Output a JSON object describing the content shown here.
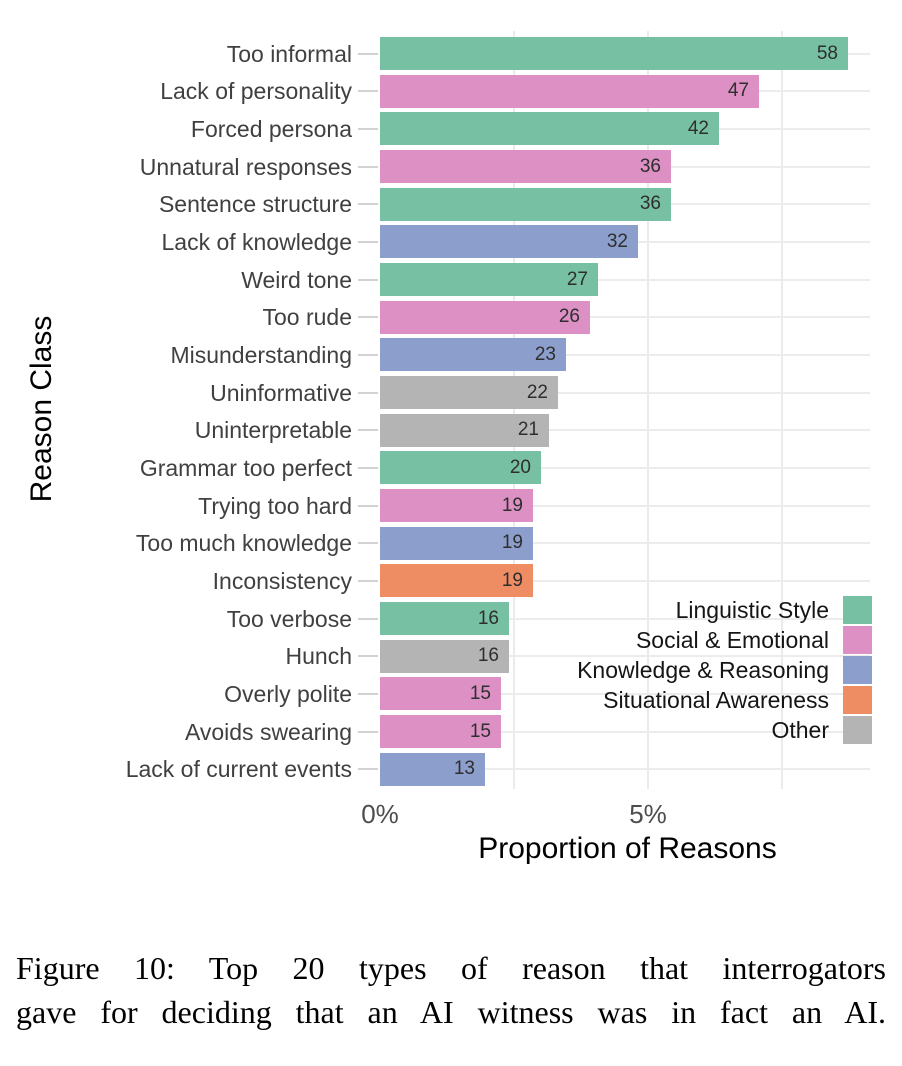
{
  "figure": {
    "caption_line1": "Figure 10: Top 20 types of reason that interrogators",
    "caption_line2": "gave for deciding that an AI witness was in fact an AI."
  },
  "chart_data": {
    "type": "bar",
    "orientation": "horizontal",
    "title": "",
    "xlabel": "Proportion of Reasons",
    "ylabel": "Reason Class",
    "x_tick_labels": [
      "0%",
      "5%"
    ],
    "x_ticks_percent": [
      0,
      5
    ],
    "x_gridlines_percent": [
      2.5,
      5,
      7.5
    ],
    "xlim_percent": [
      0,
      9.2
    ],
    "grid": true,
    "legend_position": "inside-bottom-right",
    "legend": [
      {
        "label": "Linguistic Style",
        "color": "#77c0a3"
      },
      {
        "label": "Social & Emotional",
        "color": "#dc90c3"
      },
      {
        "label": "Knowledge & Reasoning",
        "color": "#8c9ecb"
      },
      {
        "label": "Situational Awareness",
        "color": "#ee8c63"
      },
      {
        "label": "Other",
        "color": "#b4b4b4"
      }
    ],
    "bars": [
      {
        "label": "Too informal",
        "count": 58,
        "percent": 8.7,
        "category": "Linguistic Style"
      },
      {
        "label": "Lack of personality",
        "count": 47,
        "percent": 7.1,
        "category": "Social & Emotional"
      },
      {
        "label": "Forced persona",
        "count": 42,
        "percent": 6.3,
        "category": "Linguistic Style"
      },
      {
        "label": "Unnatural responses",
        "count": 36,
        "percent": 5.4,
        "category": "Social & Emotional"
      },
      {
        "label": "Sentence structure",
        "count": 36,
        "percent": 5.4,
        "category": "Linguistic Style"
      },
      {
        "label": "Lack of knowledge",
        "count": 32,
        "percent": 4.8,
        "category": "Knowledge & Reasoning"
      },
      {
        "label": "Weird tone",
        "count": 27,
        "percent": 4.1,
        "category": "Linguistic Style"
      },
      {
        "label": "Too rude",
        "count": 26,
        "percent": 3.9,
        "category": "Social & Emotional"
      },
      {
        "label": "Misunderstanding",
        "count": 23,
        "percent": 3.5,
        "category": "Knowledge & Reasoning"
      },
      {
        "label": "Uninformative",
        "count": 22,
        "percent": 3.3,
        "category": "Other"
      },
      {
        "label": "Uninterpretable",
        "count": 21,
        "percent": 3.2,
        "category": "Other"
      },
      {
        "label": "Grammar too perfect",
        "count": 20,
        "percent": 3.0,
        "category": "Linguistic Style"
      },
      {
        "label": "Trying too hard",
        "count": 19,
        "percent": 2.9,
        "category": "Social & Emotional"
      },
      {
        "label": "Too much knowledge",
        "count": 19,
        "percent": 2.9,
        "category": "Knowledge & Reasoning"
      },
      {
        "label": "Inconsistency",
        "count": 19,
        "percent": 2.9,
        "category": "Situational Awareness"
      },
      {
        "label": "Too verbose",
        "count": 16,
        "percent": 2.4,
        "category": "Linguistic Style"
      },
      {
        "label": "Hunch",
        "count": 16,
        "percent": 2.4,
        "category": "Other"
      },
      {
        "label": "Overly polite",
        "count": 15,
        "percent": 2.3,
        "category": "Social & Emotional"
      },
      {
        "label": "Avoids swearing",
        "count": 15,
        "percent": 2.3,
        "category": "Social & Emotional"
      },
      {
        "label": "Lack of current events",
        "count": 13,
        "percent": 2.0,
        "category": "Knowledge & Reasoning"
      }
    ]
  }
}
